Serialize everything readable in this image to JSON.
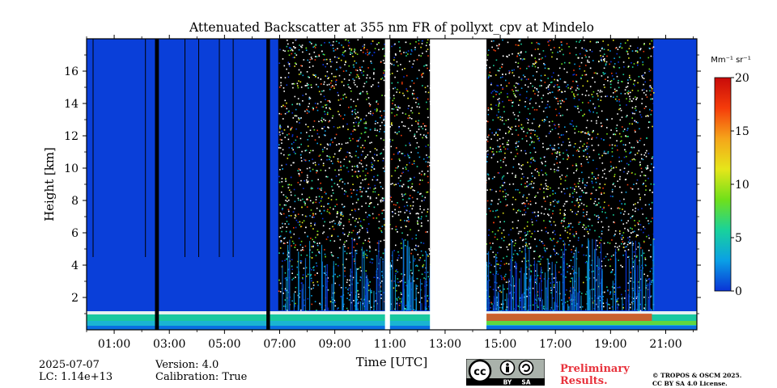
{
  "chart_data": {
    "type": "heatmap",
    "title": "Attenuated Backscatter at 355 nm FR of pollyxt_cpv at Mindelo",
    "xlabel": "Time [UTC]",
    "ylabel": "Height [km]",
    "xlim_hours": [
      0.0,
      22.13
    ],
    "ylim_km": [
      0,
      18
    ],
    "x_ticks": [
      "01:00",
      "03:00",
      "05:00",
      "07:00",
      "09:00",
      "11:00",
      "13:00",
      "15:00",
      "17:00",
      "19:00",
      "21:00"
    ],
    "x_tick_hours": [
      1,
      3,
      5,
      7,
      9,
      11,
      13,
      15,
      17,
      19,
      21
    ],
    "y_ticks": [
      2,
      4,
      6,
      8,
      10,
      12,
      14,
      16
    ],
    "colorbar": {
      "label": "Mm⁻¹ sr⁻¹",
      "min": 0,
      "max": 20,
      "ticks": [
        0,
        5,
        10,
        15,
        20
      ],
      "colormap": [
        "#0a33d6",
        "#0aa0e6",
        "#19d29b",
        "#70e01a",
        "#e6e61a",
        "#f5a51a",
        "#f53c0a",
        "#c80a0a"
      ]
    },
    "no_data_periods_hours": [
      [
        10.82,
        11.0
      ],
      [
        12.45,
        14.5
      ]
    ],
    "gap_bars_hours": [
      [
        2.48,
        2.62
      ],
      [
        6.52,
        6.65
      ]
    ],
    "thin_gap_lines_hours": [
      0.22,
      2.12,
      3.55,
      4.05,
      4.8,
      5.3
    ],
    "clear_low_signal_background": "#0a3fd9",
    "saturated_noise_region_hours": [
      6.95,
      20.55
    ]
  },
  "footer": {
    "date_line": "2025-07-07",
    "lc_line": "LC: 1.14e+13",
    "version_line": "Version: 4.0",
    "calibration_line": "Calibration: True",
    "preliminary_line1": "Preliminary",
    "preliminary_line2": "Results.",
    "copyright_line1": "© TROPOS & OSCM 2025.",
    "copyright_line2": "CC BY SA 4.0 License.",
    "license_badge": {
      "by": "BY",
      "sa": "SA",
      "cc": "cc"
    }
  }
}
